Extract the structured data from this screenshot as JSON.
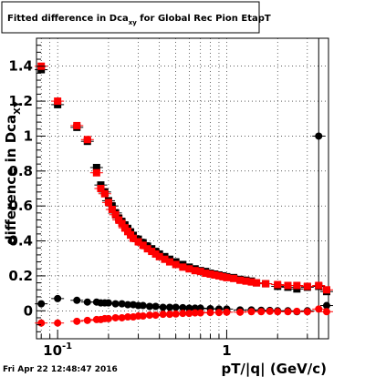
{
  "chart_data": {
    "type": "scatter",
    "title_main": "Fitted difference in Dca",
    "title_sub": "xy",
    "title_rest": " for Global Rec Pion EtapT",
    "ylabel_main": "difference in Dca",
    "ylabel_sub": "XY",
    "xlabel": "pT/|q| (GeV/c)",
    "xscale": "log",
    "xlim": [
      0.075,
      4.0
    ],
    "ylim": [
      -0.16,
      1.56
    ],
    "grid": true,
    "legend": "none",
    "x_ticks": [
      {
        "value": 0.1,
        "base": "10",
        "exp": "-1"
      },
      {
        "value": 1,
        "base": "1",
        "exp": ""
      }
    ],
    "y_ticks": [
      {
        "value": 0,
        "label": "0"
      },
      {
        "value": 0.2,
        "label": "0.2"
      },
      {
        "value": 0.4,
        "label": "0.4"
      },
      {
        "value": 0.6,
        "label": "0.6"
      },
      {
        "value": 0.8,
        "label": "0.8"
      },
      {
        "value": 1.0,
        "label": "1"
      },
      {
        "value": 1.2,
        "label": "1.2"
      },
      {
        "value": 1.4,
        "label": "1.4"
      }
    ],
    "date_stamp": "Fri Apr 22 12:48:47 2016",
    "colors": {
      "black": "#000000",
      "red": "#ff0000"
    },
    "series": [
      {
        "color": "#000000",
        "marker": "square",
        "points": [
          [
            0.08,
            1.38
          ],
          [
            0.1,
            1.18
          ],
          [
            0.13,
            1.05
          ],
          [
            0.15,
            0.97
          ],
          [
            0.17,
            0.82
          ],
          [
            0.18,
            0.72
          ],
          [
            0.19,
            0.68
          ],
          [
            0.2,
            0.63
          ],
          [
            0.21,
            0.6
          ],
          [
            0.22,
            0.56
          ],
          [
            0.23,
            0.53
          ],
          [
            0.24,
            0.51
          ],
          [
            0.25,
            0.49
          ],
          [
            0.26,
            0.47
          ],
          [
            0.27,
            0.45
          ],
          [
            0.28,
            0.43
          ],
          [
            0.3,
            0.41
          ],
          [
            0.32,
            0.39
          ],
          [
            0.34,
            0.37
          ],
          [
            0.36,
            0.355
          ],
          [
            0.38,
            0.34
          ],
          [
            0.4,
            0.325
          ],
          [
            0.43,
            0.31
          ],
          [
            0.46,
            0.295
          ],
          [
            0.5,
            0.28
          ],
          [
            0.55,
            0.265
          ],
          [
            0.6,
            0.25
          ],
          [
            0.65,
            0.24
          ],
          [
            0.7,
            0.23
          ],
          [
            0.75,
            0.225
          ],
          [
            0.8,
            0.215
          ],
          [
            0.85,
            0.21
          ],
          [
            0.9,
            0.205
          ],
          [
            0.95,
            0.2
          ],
          [
            1.0,
            0.195
          ],
          [
            1.1,
            0.19
          ],
          [
            1.2,
            0.18
          ],
          [
            1.3,
            0.175
          ],
          [
            1.4,
            0.17
          ],
          [
            1.5,
            0.16
          ],
          [
            1.7,
            0.155
          ],
          [
            2.0,
            0.14
          ],
          [
            2.3,
            0.135
          ],
          [
            2.6,
            0.125
          ],
          [
            3.0,
            0.135
          ],
          [
            3.5,
            0.14
          ],
          [
            3.9,
            0.11
          ]
        ]
      },
      {
        "color": "#ff0000",
        "marker": "square",
        "points": [
          [
            0.08,
            1.4
          ],
          [
            0.1,
            1.2
          ],
          [
            0.13,
            1.06
          ],
          [
            0.15,
            0.98
          ],
          [
            0.17,
            0.79
          ],
          [
            0.18,
            0.7
          ],
          [
            0.19,
            0.67
          ],
          [
            0.2,
            0.62
          ],
          [
            0.21,
            0.58
          ],
          [
            0.22,
            0.55
          ],
          [
            0.23,
            0.52
          ],
          [
            0.24,
            0.5
          ],
          [
            0.25,
            0.475
          ],
          [
            0.26,
            0.455
          ],
          [
            0.27,
            0.435
          ],
          [
            0.28,
            0.415
          ],
          [
            0.3,
            0.395
          ],
          [
            0.32,
            0.375
          ],
          [
            0.34,
            0.355
          ],
          [
            0.36,
            0.34
          ],
          [
            0.38,
            0.325
          ],
          [
            0.4,
            0.31
          ],
          [
            0.43,
            0.295
          ],
          [
            0.46,
            0.28
          ],
          [
            0.5,
            0.265
          ],
          [
            0.55,
            0.25
          ],
          [
            0.6,
            0.24
          ],
          [
            0.65,
            0.23
          ],
          [
            0.7,
            0.225
          ],
          [
            0.75,
            0.215
          ],
          [
            0.8,
            0.21
          ],
          [
            0.85,
            0.205
          ],
          [
            0.9,
            0.2
          ],
          [
            0.95,
            0.195
          ],
          [
            1.0,
            0.19
          ],
          [
            1.1,
            0.185
          ],
          [
            1.2,
            0.175
          ],
          [
            1.3,
            0.17
          ],
          [
            1.4,
            0.165
          ],
          [
            1.5,
            0.16
          ],
          [
            1.7,
            0.155
          ],
          [
            2.0,
            0.15
          ],
          [
            2.3,
            0.145
          ],
          [
            2.6,
            0.145
          ],
          [
            3.0,
            0.14
          ],
          [
            3.5,
            0.145
          ],
          [
            3.9,
            0.12
          ]
        ]
      },
      {
        "color": "#000000",
        "marker": "circle",
        "points": [
          [
            0.08,
            0.04
          ],
          [
            0.1,
            0.07
          ],
          [
            0.13,
            0.06
          ],
          [
            0.15,
            0.05
          ],
          [
            0.17,
            0.05
          ],
          [
            0.18,
            0.045
          ],
          [
            0.19,
            0.045
          ],
          [
            0.2,
            0.045
          ],
          [
            0.22,
            0.04
          ],
          [
            0.24,
            0.04
          ],
          [
            0.26,
            0.035
          ],
          [
            0.28,
            0.035
          ],
          [
            0.3,
            0.03
          ],
          [
            0.32,
            0.03
          ],
          [
            0.35,
            0.025
          ],
          [
            0.38,
            0.025
          ],
          [
            0.42,
            0.02
          ],
          [
            0.46,
            0.02
          ],
          [
            0.5,
            0.02
          ],
          [
            0.55,
            0.018
          ],
          [
            0.6,
            0.015
          ],
          [
            0.65,
            0.015
          ],
          [
            0.7,
            0.015
          ],
          [
            0.8,
            0.012
          ],
          [
            0.9,
            0.01
          ],
          [
            1.0,
            0.01
          ],
          [
            1.2,
            0.005
          ],
          [
            1.4,
            0.005
          ],
          [
            1.6,
            0.003
          ],
          [
            1.8,
            0.002
          ],
          [
            2.0,
            0.0
          ],
          [
            2.3,
            0.0
          ],
          [
            2.6,
            -0.005
          ],
          [
            3.0,
            0.0
          ],
          [
            3.5,
            1.0
          ],
          [
            3.9,
            0.03
          ]
        ]
      },
      {
        "color": "#ff0000",
        "marker": "circle",
        "points": [
          [
            0.08,
            -0.07
          ],
          [
            0.1,
            -0.07
          ],
          [
            0.13,
            -0.06
          ],
          [
            0.15,
            -0.055
          ],
          [
            0.17,
            -0.05
          ],
          [
            0.18,
            -0.05
          ],
          [
            0.19,
            -0.045
          ],
          [
            0.2,
            -0.045
          ],
          [
            0.22,
            -0.04
          ],
          [
            0.24,
            -0.04
          ],
          [
            0.26,
            -0.035
          ],
          [
            0.28,
            -0.035
          ],
          [
            0.3,
            -0.03
          ],
          [
            0.32,
            -0.03
          ],
          [
            0.35,
            -0.025
          ],
          [
            0.38,
            -0.025
          ],
          [
            0.42,
            -0.02
          ],
          [
            0.46,
            -0.02
          ],
          [
            0.5,
            -0.018
          ],
          [
            0.55,
            -0.015
          ],
          [
            0.6,
            -0.015
          ],
          [
            0.65,
            -0.012
          ],
          [
            0.7,
            -0.012
          ],
          [
            0.8,
            -0.01
          ],
          [
            0.9,
            -0.01
          ],
          [
            1.0,
            -0.008
          ],
          [
            1.2,
            -0.008
          ],
          [
            1.4,
            -0.005
          ],
          [
            1.6,
            -0.005
          ],
          [
            1.8,
            -0.003
          ],
          [
            2.0,
            -0.005
          ],
          [
            2.3,
            -0.005
          ],
          [
            2.6,
            -0.003
          ],
          [
            3.0,
            -0.005
          ],
          [
            3.5,
            0.01
          ],
          [
            3.9,
            -0.005
          ]
        ]
      }
    ]
  }
}
